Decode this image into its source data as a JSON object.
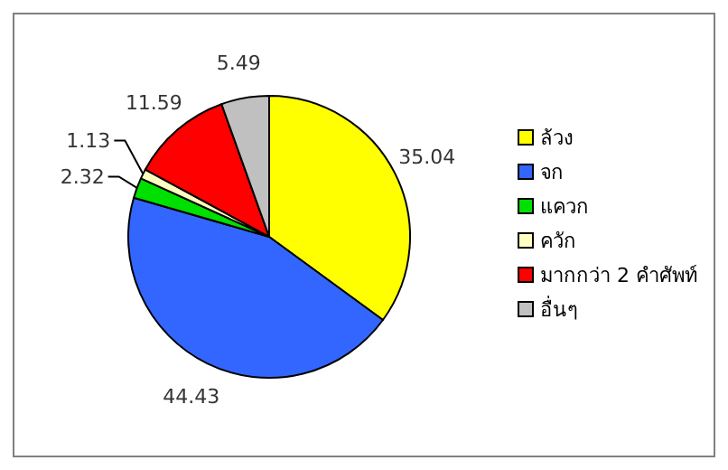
{
  "chart_data": {
    "type": "pie",
    "categories": [
      "ล้วง",
      "จก",
      "แควก",
      "ควัก",
      "มากกว่า 2 คำศัพท์",
      "อื่นๆ"
    ],
    "values": [
      35.04,
      44.43,
      2.32,
      1.13,
      11.59,
      5.49
    ],
    "colors": [
      "#ffff00",
      "#3366ff",
      "#00e000",
      "#ffffc0",
      "#ff0000",
      "#c0c0c0"
    ],
    "data_labels": true,
    "legend": "right"
  }
}
